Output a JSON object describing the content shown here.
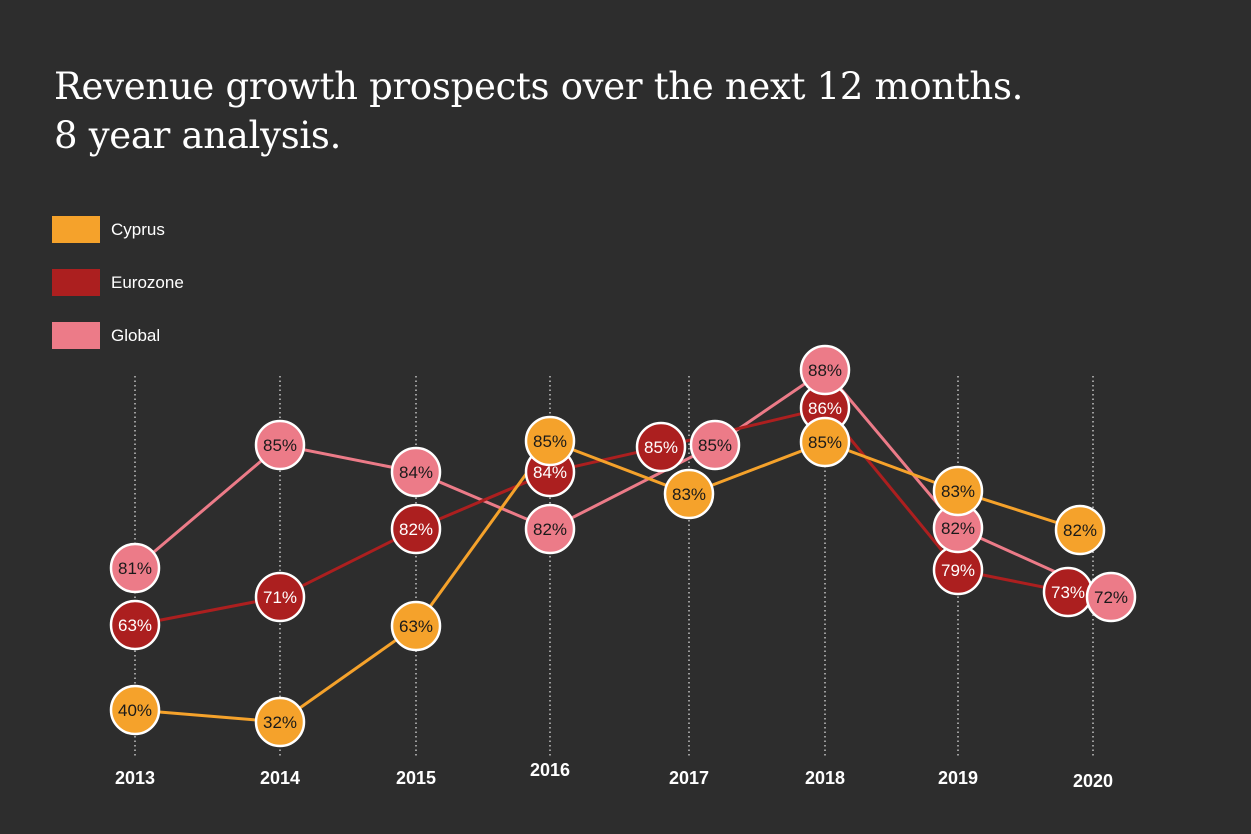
{
  "chart_data": {
    "type": "line",
    "title": "Revenue growth prospects over the next 12 months.",
    "subtitle": "8 year analysis.",
    "categories": [
      "2013",
      "2014",
      "2015",
      "2016",
      "2017",
      "2018",
      "2019",
      "2020"
    ],
    "series": [
      {
        "name": "Global",
        "color": "#ec7b88",
        "values": [
          81,
          85,
          84,
          82,
          85,
          88,
          82,
          72
        ],
        "labels": [
          "81%",
          "85%",
          "84%",
          "82%",
          "85%",
          "88%",
          "82%",
          "72%"
        ]
      },
      {
        "name": "Eurozone",
        "color": "#ac1f1f",
        "values": [
          63,
          71,
          82,
          84,
          85,
          86,
          79,
          73
        ],
        "labels": [
          "63%",
          "71%",
          "82%",
          "84%",
          "85%",
          "86%",
          "79%",
          "73%"
        ]
      },
      {
        "name": "Cyprus",
        "color": "#f5a22b",
        "values": [
          40,
          32,
          63,
          85,
          83,
          85,
          83,
          82
        ],
        "labels": [
          "40%",
          "32%",
          "63%",
          "85%",
          "83%",
          "85%",
          "83%",
          "82%"
        ]
      }
    ],
    "legend_order": [
      "Cyprus",
      "Eurozone",
      "Global"
    ],
    "legend_position": "top-left",
    "grid": "dotted vertical lines at each year",
    "background": "#2d2d2d"
  }
}
